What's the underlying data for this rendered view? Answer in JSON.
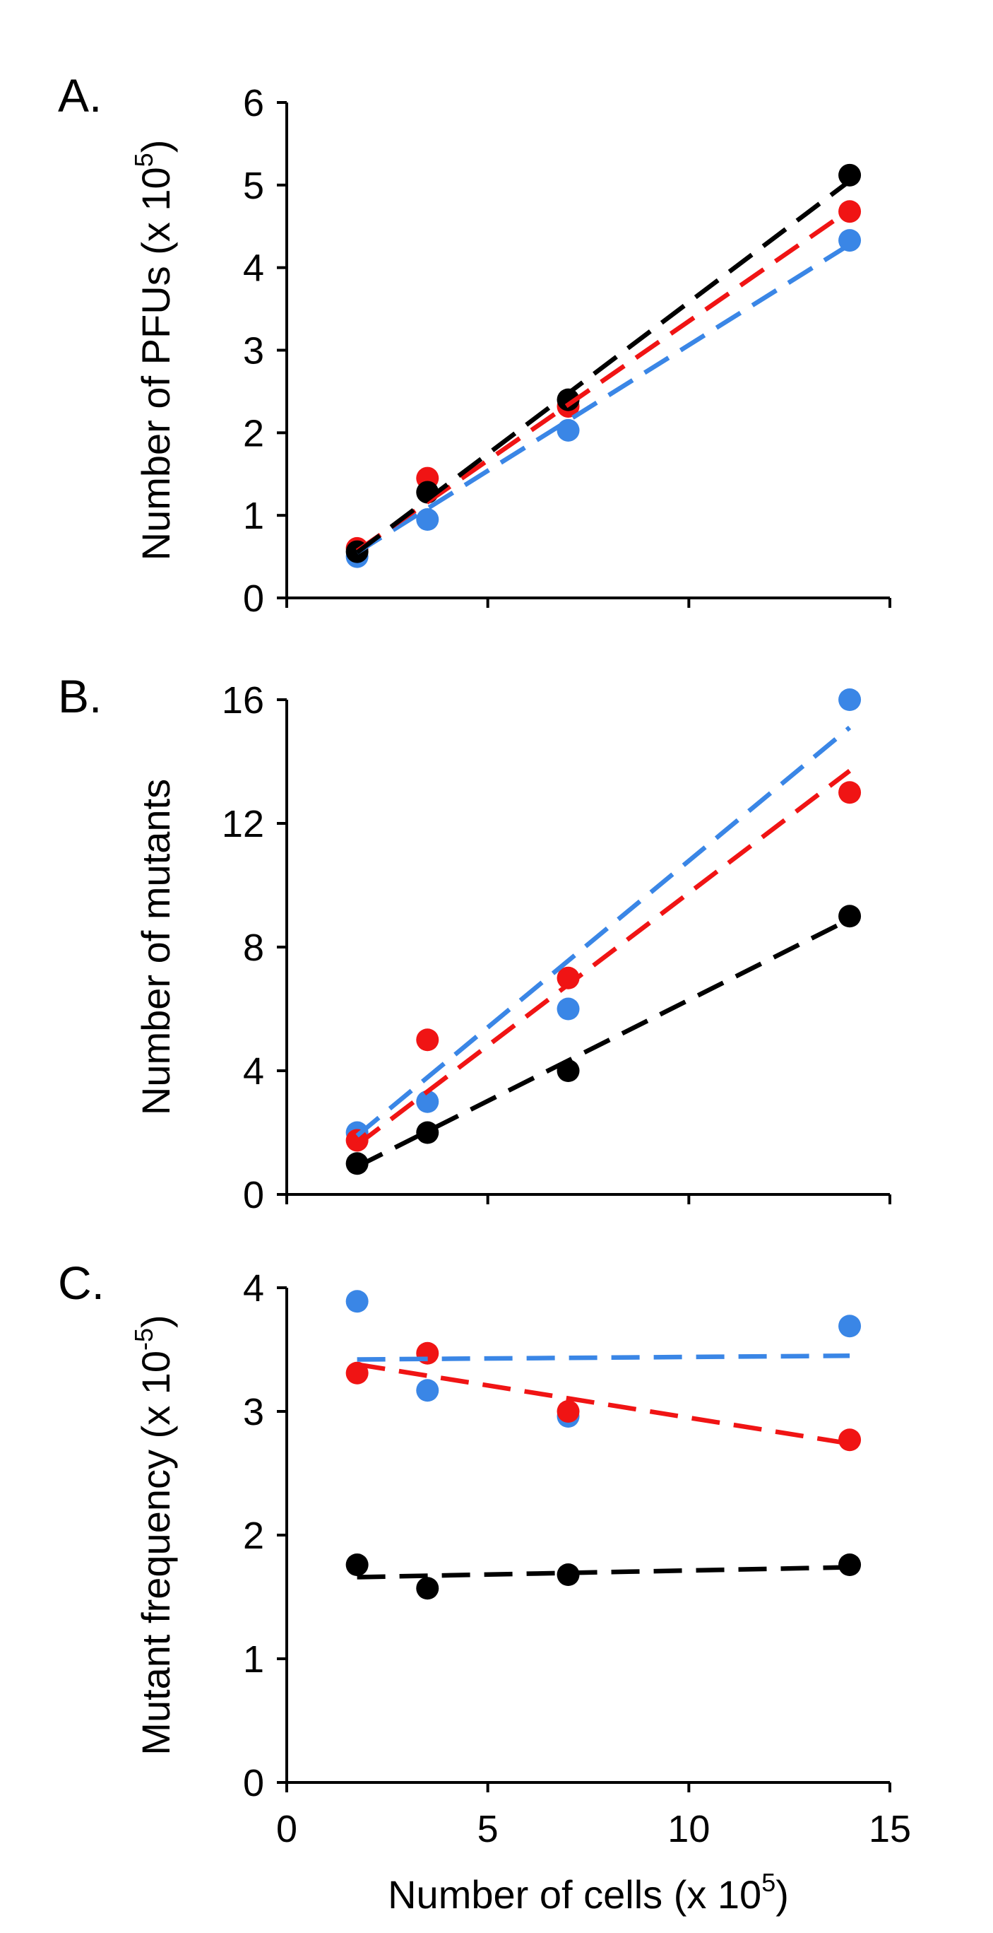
{
  "chart_data": [
    {
      "type": "scatter",
      "panel": "A.",
      "ylabel": "Number of PFUs (x 10",
      "ylabel_sup": "5",
      "ylabel_end": ")",
      "xlabel": "",
      "xlim": [
        0,
        15
      ],
      "ylim": [
        0,
        6
      ],
      "yticks": [
        0,
        1,
        2,
        3,
        4,
        5,
        6
      ],
      "xticks": [
        0,
        5,
        10,
        15
      ],
      "x_tick_labels_shown": false,
      "series": [
        {
          "name": "blue",
          "color": "#3a86e6",
          "x": [
            1.75,
            3.5,
            7,
            14
          ],
          "y": [
            0.5,
            0.95,
            2.03,
            4.33
          ],
          "trend": [
            [
              1.75,
              0.55
            ],
            [
              14,
              4.28
            ]
          ]
        },
        {
          "name": "red",
          "color": "#f01414",
          "x": [
            1.75,
            3.5,
            7,
            14
          ],
          "y": [
            0.6,
            1.45,
            2.32,
            4.68
          ],
          "trend": [
            [
              1.75,
              0.57
            ],
            [
              14,
              4.7
            ]
          ]
        },
        {
          "name": "black",
          "color": "#000000",
          "x": [
            1.75,
            3.5,
            7,
            14
          ],
          "y": [
            0.56,
            1.28,
            2.4,
            5.12
          ],
          "trend": [
            [
              1.75,
              0.55
            ],
            [
              14,
              5.05
            ]
          ]
        }
      ]
    },
    {
      "type": "scatter",
      "panel": "B.",
      "ylabel": "Number of mutants",
      "ylabel_sup": "",
      "ylabel_end": "",
      "xlabel": "",
      "xlim": [
        0,
        15
      ],
      "ylim": [
        0,
        16
      ],
      "yticks": [
        0,
        4,
        8,
        12,
        16
      ],
      "xticks": [
        0,
        5,
        10,
        15
      ],
      "x_tick_labels_shown": false,
      "series": [
        {
          "name": "blue",
          "color": "#3a86e6",
          "x": [
            1.75,
            3.5,
            7,
            14
          ],
          "y": [
            2,
            3,
            6,
            16
          ],
          "trend": [
            [
              1.75,
              1.9
            ],
            [
              14,
              15.1
            ]
          ]
        },
        {
          "name": "red",
          "color": "#f01414",
          "x": [
            1.75,
            3.5,
            7,
            14
          ],
          "y": [
            1.75,
            5,
            7,
            13
          ],
          "trend": [
            [
              1.75,
              1.6
            ],
            [
              14,
              13.7
            ]
          ]
        },
        {
          "name": "black",
          "color": "#000000",
          "x": [
            1.75,
            3.5,
            7,
            14
          ],
          "y": [
            1,
            2,
            4,
            9
          ],
          "trend": [
            [
              1.75,
              0.9
            ],
            [
              14,
              8.9
            ]
          ]
        }
      ]
    },
    {
      "type": "scatter",
      "panel": "C.",
      "ylabel": "Mutant frequency (x 10",
      "ylabel_sup": "-5",
      "ylabel_end": ")",
      "xlabel": "Number of cells (x 10",
      "xlabel_sup": "5",
      "xlabel_end": ")",
      "xlim": [
        0,
        15
      ],
      "ylim": [
        0,
        4
      ],
      "yticks": [
        0,
        1,
        2,
        3,
        4
      ],
      "xticks": [
        0,
        5,
        10,
        15
      ],
      "x_tick_labels_shown": true,
      "series": [
        {
          "name": "blue",
          "color": "#3a86e6",
          "x": [
            1.75,
            3.5,
            7,
            14
          ],
          "y": [
            3.89,
            3.17,
            2.96,
            3.69
          ],
          "trend": [
            [
              1.75,
              3.42
            ],
            [
              14,
              3.45
            ]
          ]
        },
        {
          "name": "red",
          "color": "#f01414",
          "x": [
            1.75,
            3.5,
            7,
            14
          ],
          "y": [
            3.31,
            3.47,
            3.0,
            2.77
          ],
          "trend": [
            [
              1.75,
              3.38
            ],
            [
              14,
              2.74
            ]
          ]
        },
        {
          "name": "black",
          "color": "#000000",
          "x": [
            1.75,
            3.5,
            7,
            14
          ],
          "y": [
            1.76,
            1.57,
            1.68,
            1.76
          ],
          "trend": [
            [
              1.75,
              1.66
            ],
            [
              14,
              1.74
            ]
          ]
        }
      ]
    }
  ]
}
